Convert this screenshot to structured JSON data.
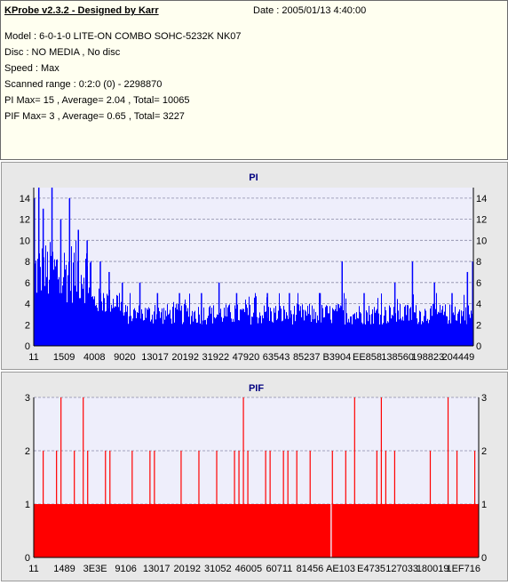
{
  "header": {
    "title": "KProbe v2.3.2 - Designed by Karr",
    "date": "Date : 2005/01/13 4:40:00",
    "lines": [
      "Model : 6-0-1-0 LITE-ON COMBO SOHC-5232K NK07",
      "Disc : NO MEDIA , No disc",
      "Speed : Max",
      "Scanned range : 0:2:0 (0) - 2298870",
      "PI Max= 15 , Average= 2.04 , Total= 10065",
      "PIF Max= 3 , Average= 0.65 , Total= 3227"
    ]
  },
  "colors": {
    "pi": "#0000ff",
    "pif": "#ff0000",
    "plot_bg": "#eeeefb",
    "panel_bg": "#e8e8e8",
    "title": "#000080"
  },
  "chart_data": [
    {
      "type": "bar",
      "title": "PI",
      "ylim": [
        0,
        15
      ],
      "yticks": [
        "0",
        "2",
        "4",
        "6",
        "8",
        "10",
        "12",
        "14"
      ],
      "xtick_labels": [
        "11",
        "1509",
        "4008",
        "9020",
        "13017",
        "20192",
        "31922",
        "47920",
        "63543",
        "85237",
        "B3904",
        "EE858",
        "138560",
        "198823",
        "204449"
      ],
      "grid": true,
      "peaks": [
        {
          "position": 0.0,
          "value": 14
        },
        {
          "position": 0.01,
          "value": 15
        },
        {
          "position": 0.02,
          "value": 13
        },
        {
          "position": 0.04,
          "value": 15
        },
        {
          "position": 0.06,
          "value": 12
        },
        {
          "position": 0.08,
          "value": 14
        },
        {
          "position": 0.1,
          "value": 11
        },
        {
          "position": 0.12,
          "value": 10
        },
        {
          "position": 0.15,
          "value": 8
        },
        {
          "position": 0.17,
          "value": 7
        },
        {
          "position": 0.2,
          "value": 6
        },
        {
          "position": 0.24,
          "value": 6
        },
        {
          "position": 0.28,
          "value": 5
        },
        {
          "position": 0.33,
          "value": 5
        },
        {
          "position": 0.38,
          "value": 5
        },
        {
          "position": 0.42,
          "value": 6
        },
        {
          "position": 0.46,
          "value": 5
        },
        {
          "position": 0.53,
          "value": 5
        },
        {
          "position": 0.58,
          "value": 5
        },
        {
          "position": 0.65,
          "value": 5
        },
        {
          "position": 0.7,
          "value": 8
        },
        {
          "position": 0.75,
          "value": 5
        },
        {
          "position": 0.82,
          "value": 6
        },
        {
          "position": 0.86,
          "value": 8
        },
        {
          "position": 0.91,
          "value": 6
        },
        {
          "position": 0.95,
          "value": 5
        },
        {
          "position": 0.985,
          "value": 7
        },
        {
          "position": 1.0,
          "value": 8
        }
      ]
    },
    {
      "type": "bar",
      "title": "PIF",
      "ylim": [
        0,
        3
      ],
      "yticks": [
        "0",
        "1",
        "2",
        "3"
      ],
      "xtick_labels": [
        "11",
        "1489",
        "3E3E",
        "9106",
        "13017",
        "20192",
        "31052",
        "46005",
        "60711",
        "81456",
        "AE103",
        "E4735",
        "127033",
        "180019",
        "1EF716"
      ],
      "grid": true,
      "baseline": 1,
      "gap_position": 0.667,
      "spikes": [
        {
          "position": 0.02,
          "value": 2
        },
        {
          "position": 0.05,
          "value": 2
        },
        {
          "position": 0.06,
          "value": 3
        },
        {
          "position": 0.09,
          "value": 2
        },
        {
          "position": 0.11,
          "value": 3
        },
        {
          "position": 0.12,
          "value": 2
        },
        {
          "position": 0.16,
          "value": 2
        },
        {
          "position": 0.17,
          "value": 2
        },
        {
          "position": 0.22,
          "value": 2
        },
        {
          "position": 0.26,
          "value": 2
        },
        {
          "position": 0.27,
          "value": 2
        },
        {
          "position": 0.33,
          "value": 2
        },
        {
          "position": 0.37,
          "value": 2
        },
        {
          "position": 0.41,
          "value": 2
        },
        {
          "position": 0.45,
          "value": 2
        },
        {
          "position": 0.46,
          "value": 2
        },
        {
          "position": 0.47,
          "value": 3
        },
        {
          "position": 0.48,
          "value": 2
        },
        {
          "position": 0.52,
          "value": 2
        },
        {
          "position": 0.53,
          "value": 2
        },
        {
          "position": 0.56,
          "value": 2
        },
        {
          "position": 0.57,
          "value": 2
        },
        {
          "position": 0.59,
          "value": 2
        },
        {
          "position": 0.62,
          "value": 2
        },
        {
          "position": 0.67,
          "value": 2
        },
        {
          "position": 0.7,
          "value": 2
        },
        {
          "position": 0.72,
          "value": 3
        },
        {
          "position": 0.77,
          "value": 2
        },
        {
          "position": 0.78,
          "value": 3
        },
        {
          "position": 0.79,
          "value": 2
        },
        {
          "position": 0.81,
          "value": 2
        },
        {
          "position": 0.89,
          "value": 2
        },
        {
          "position": 0.93,
          "value": 3
        },
        {
          "position": 0.95,
          "value": 2
        },
        {
          "position": 0.99,
          "value": 2
        }
      ]
    }
  ]
}
